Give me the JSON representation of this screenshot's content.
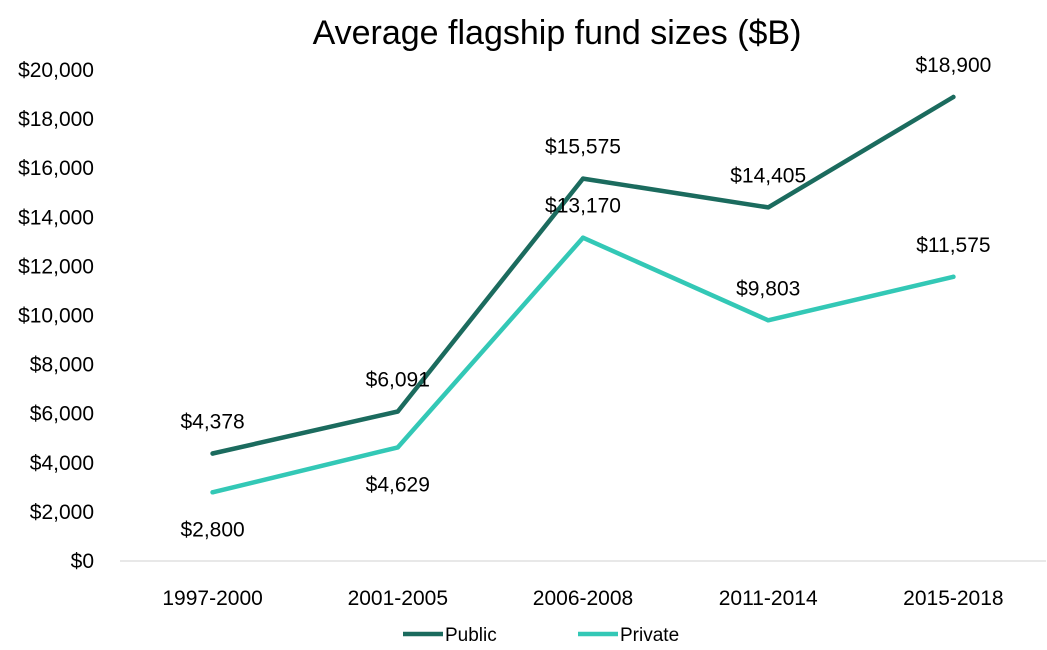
{
  "chart_data": {
    "type": "line",
    "title": "Average flagship fund sizes ($B)",
    "xlabel": "",
    "ylabel": "",
    "categories": [
      "1997-2000",
      "2001-2005",
      "2006-2008",
      "2011-2014",
      "2015-2018"
    ],
    "ylim": [
      0,
      20000
    ],
    "yticks": [
      0,
      2000,
      4000,
      6000,
      8000,
      10000,
      12000,
      14000,
      16000,
      18000,
      20000
    ],
    "ytick_labels": [
      "$0",
      "$2,000",
      "$4,000",
      "$6,000",
      "$8,000",
      "$10,000",
      "$12,000",
      "$14,000",
      "$16,000",
      "$18,000",
      "$20,000"
    ],
    "grid": false,
    "legend_position": "bottom",
    "series": [
      {
        "name": "Public",
        "color": "#1b6b5e",
        "values": [
          4378,
          6091,
          15575,
          14405,
          18900
        ],
        "labels": [
          "$4,378",
          "$6,091",
          "$15,575",
          "$14,405",
          "$18,900"
        ],
        "label_placement": [
          "above",
          "above",
          "above",
          "above",
          "above"
        ]
      },
      {
        "name": "Private",
        "color": "#33c8b6",
        "values": [
          2800,
          4629,
          13170,
          9803,
          11575
        ],
        "labels": [
          "$2,800",
          "$4,629",
          "$13,170",
          "$9,803",
          "$11,575"
        ],
        "label_placement": [
          "below",
          "below",
          "above",
          "above",
          "above"
        ]
      }
    ]
  }
}
